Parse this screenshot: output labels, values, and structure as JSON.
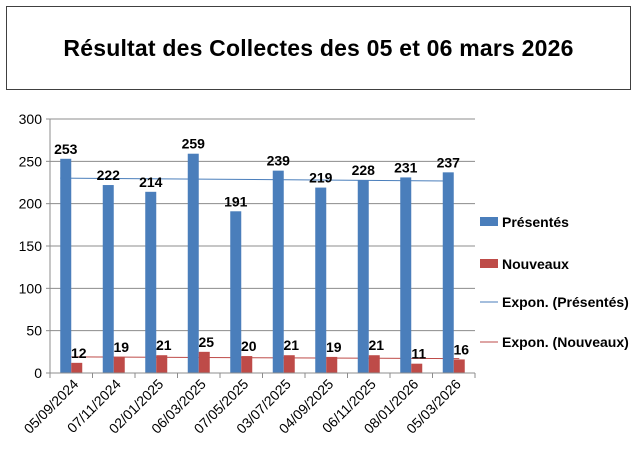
{
  "title": "Résultat des Collectes des 05 et 06 mars 2026",
  "chart_data": {
    "type": "bar",
    "title": "Résultat des Collectes des 05 et 06 mars 2026",
    "categories": [
      "05/09/2024",
      "07/11/2024",
      "02/01/2025",
      "06/03/2025",
      "07/05/2025",
      "03/07/2025",
      "04/09/2025",
      "06/11/2025",
      "08/01/2026",
      "05/03/2026"
    ],
    "series": [
      {
        "name": "Présentés",
        "values": [
          253,
          222,
          214,
          259,
          191,
          239,
          219,
          228,
          231,
          237
        ],
        "color": "#4a7ebb"
      },
      {
        "name": "Nouveaux",
        "values": [
          12,
          19,
          21,
          25,
          20,
          21,
          19,
          21,
          11,
          16
        ],
        "color": "#be4b48"
      }
    ],
    "trendlines": [
      {
        "name": "Expon. (Présentés)",
        "color": "#4a7ebb"
      },
      {
        "name": "Expon. (Nouveaux)",
        "color": "#be4b48"
      }
    ],
    "yticks": [
      "0",
      "50",
      "100",
      "150",
      "200",
      "250",
      "300"
    ],
    "ylim": [
      0,
      300
    ],
    "xlabel": "",
    "ylabel": "",
    "grid": true,
    "legend": "right"
  }
}
